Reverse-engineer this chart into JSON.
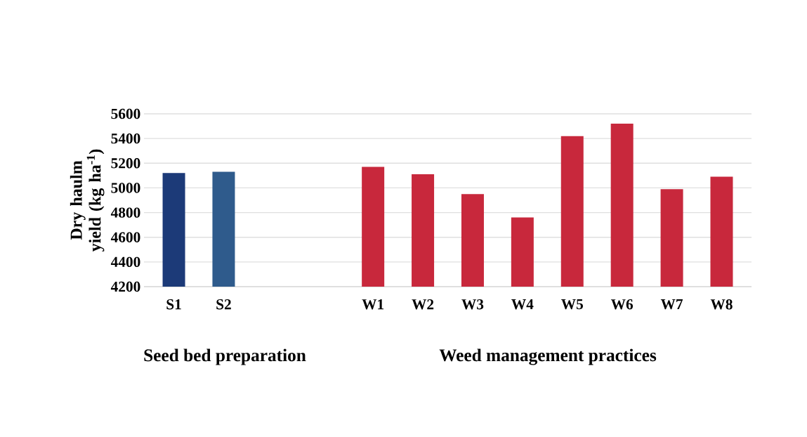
{
  "chart_data": {
    "type": "bar",
    "ylabel": "Dry haulm yield (kg ha$^{-1}$)",
    "categories": [
      "S1",
      "S2",
      null,
      null,
      "W1",
      "W2",
      "W3",
      "W4",
      "W5",
      "W6",
      "W7",
      "W8"
    ],
    "values": [
      5120,
      5130,
      null,
      null,
      5170,
      5110,
      4950,
      4760,
      5420,
      5520,
      4990,
      5090
    ],
    "colors": [
      "#1c3a78",
      "#2f5b8c",
      "#c8283c",
      "#c8283c",
      "#c8283c",
      "#c8283c",
      "#c8283c",
      "#c8283c",
      "#c8283c",
      "#c8283c",
      "#c8283c",
      "#c8283c"
    ],
    "ylim": [
      4200,
      5600
    ],
    "yticks": [
      4200,
      4400,
      4600,
      4800,
      5000,
      5200,
      5400,
      5600
    ],
    "grid": "y",
    "annotations": [
      "Seed bed preparation",
      "Weed management practices"
    ]
  }
}
